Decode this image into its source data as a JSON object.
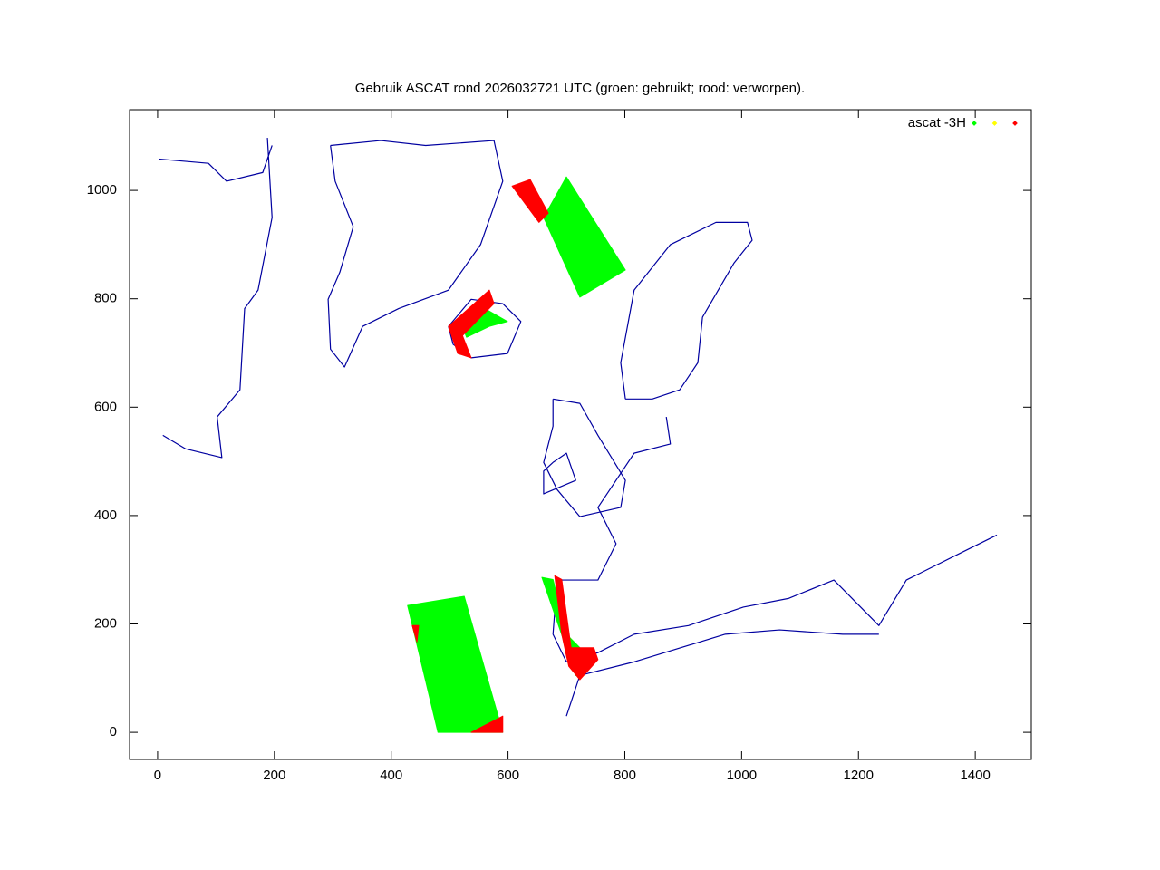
{
  "chart_data": {
    "type": "scatter",
    "title": "Gebruik ASCAT rond 2026032721 UTC (groen: gebruikt; rood: verworpen).",
    "xlim": [
      -48,
      1496
    ],
    "ylim": [
      -50,
      1149
    ],
    "xticks": [
      0,
      200,
      400,
      600,
      800,
      1000,
      1200,
      1400
    ],
    "yticks": [
      0,
      200,
      400,
      600,
      800,
      1000
    ],
    "legend": "top-right",
    "series": [
      {
        "color": "#0000a0",
        "style": "line",
        "x": [
          296,
          382,
          459,
          576,
          591,
          553,
          498,
          413,
          351,
          320,
          296,
          292,
          312,
          335,
          304,
          296,
          null,
          188,
          196,
          172,
          149,
          141,
          102,
          110,
          48,
          9,
          null,
          2,
          87,
          118,
          180,
          196,
          null,
          498,
          537,
          591,
          622,
          599,
          537,
          506,
          498,
          null,
          801,
          793,
          816,
          878,
          956,
          1010,
          1018,
          987,
          933,
          925,
          894,
          847,
          816,
          801,
          null,
          871,
          878,
          816,
          754,
          785,
          754,
          684,
          677,
          700,
          754,
          816,
          909,
          1003,
          1080,
          1158,
          1235,
          1282,
          1375,
          1437,
          null,
          700,
          723,
          816,
          972,
          1065,
          1173,
          1235,
          null,
          677,
          723,
          754,
          801,
          793,
          723,
          684,
          661,
          677,
          677,
          null,
          677,
          700,
          716,
          661,
          661,
          677
        ],
        "y": [
          1083,
          1092,
          1083,
          1092,
          1017,
          900,
          816,
          782,
          749,
          674,
          707,
          799,
          849,
          933,
          1017,
          1083,
          null,
          1097,
          950,
          816,
          782,
          632,
          582,
          507,
          523,
          548,
          null,
          1058,
          1050,
          1017,
          1033,
          1083,
          null,
          749,
          799,
          791,
          758,
          699,
          691,
          716,
          749,
          null,
          615,
          682,
          816,
          900,
          941,
          941,
          908,
          866,
          766,
          682,
          632,
          615,
          615,
          615,
          null,
          582,
          532,
          515,
          415,
          348,
          281,
          281,
          181,
          130,
          147,
          181,
          197,
          231,
          247,
          281,
          197,
          281,
          331,
          364,
          null,
          30,
          105,
          130,
          181,
          189,
          181,
          181,
          null,
          615,
          607,
          548,
          465,
          415,
          398,
          448,
          498,
          565,
          615,
          null,
          498,
          515,
          465,
          440,
          482,
          498
        ]
      },
      {
        "name": "ascat -3H",
        "color": "#00ff00",
        "style": "fill",
        "x": [
          661,
          700,
          801,
          723,
          null,
          428,
          525,
          591,
          480,
          null,
          522,
          560,
          599,
          568,
          529,
          null,
          658,
          677,
          700,
          739,
          716
        ],
        "y": [
          950,
          1025,
          853,
          803,
          null,
          234,
          251,
          0,
          0,
          null,
          749,
          782,
          758,
          749,
          729,
          null,
          286,
          282,
          181,
          139,
          105
        ]
      },
      {
        "color": "#ffff00",
        "style": "fill",
        "x": [],
        "y": []
      },
      {
        "color": "#ff0000",
        "style": "fill",
        "x": [
          607,
          638,
          669,
          653,
          null,
          498,
          568,
          576,
          522,
          537,
          514,
          null,
          680,
          692,
          708,
          747,
          754,
          723,
          704,
          692,
          null,
          537,
          591,
          591,
          null,
          436,
          447,
          444
        ],
        "y": [
          1008,
          1020,
          958,
          941,
          null,
          749,
          816,
          791,
          732,
          691,
          699,
          null,
          289,
          282,
          156,
          156,
          134,
          97,
          122,
          181,
          null,
          0,
          30,
          0,
          null,
          197,
          197,
          167
        ]
      }
    ]
  }
}
